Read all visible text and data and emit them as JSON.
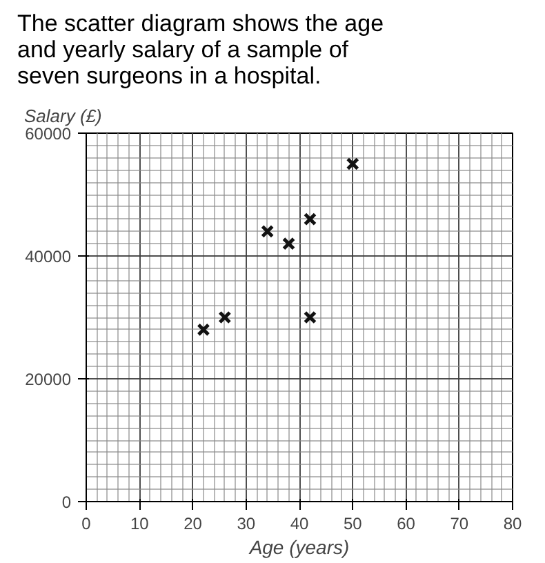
{
  "chart_data": {
    "type": "scatter",
    "title": "The scatter diagram shows the age and yearly salary of a sample of seven surgeons in a hospital.",
    "xlabel": "Age (years)",
    "ylabel": "Salary (£)",
    "x": [
      22,
      26,
      34,
      38,
      42,
      42,
      50
    ],
    "series": [
      {
        "color": "#111111",
        "values": [
          28000,
          30000,
          44000,
          42000,
          46000,
          30000,
          55000
        ]
      }
    ],
    "xlim": [
      0,
      80
    ],
    "ylim": [
      0,
      60000
    ],
    "xticks": [
      0,
      10,
      20,
      30,
      40,
      50,
      60,
      70,
      80
    ],
    "yticks": [
      0,
      20000,
      40000,
      60000
    ],
    "grid": true,
    "marker": "cross"
  }
}
